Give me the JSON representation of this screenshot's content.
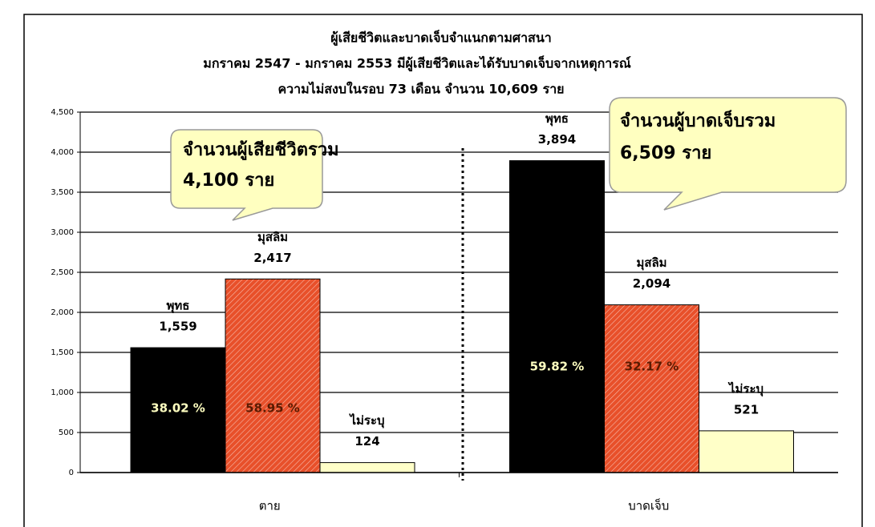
{
  "chart_data": {
    "type": "bar",
    "title": [
      "ผู้เสียชีวิตและบาดเจ็บจำแนกตามศาสนา",
      "มกราคม 2547 - มกราคม 2553 มีผู้เสียชีวิตและได้รับบาดเจ็บจากเหตุการณ์",
      "ความไม่สงบในรอบ 73 เดือน จำนวน 10,609 ราย"
    ],
    "categories": [
      "ตาย",
      "บาดเจ็บ"
    ],
    "series": [
      {
        "name": "พุทธ",
        "color": "#000000",
        "values": [
          1559,
          3894
        ],
        "value_labels": [
          "1,559",
          "3,894"
        ],
        "percent_labels": [
          "38.02 %",
          "59.82 %"
        ]
      },
      {
        "name": "มุสลิม",
        "color": "#e8502a",
        "hatch": true,
        "values": [
          2417,
          2094
        ],
        "value_labels": [
          "2,417",
          "2,094"
        ],
        "percent_labels": [
          "58.95 %",
          "32.17 %"
        ]
      },
      {
        "name": "ไม่ระบุ",
        "color": "#ffffc8",
        "values": [
          124,
          521
        ],
        "value_labels": [
          "124",
          "521"
        ]
      }
    ],
    "ylim": [
      0,
      4500
    ],
    "yticks": [
      0,
      500,
      {
        "value": 1000,
        "label": "1,000"
      },
      {
        "value": 1500,
        "label": "1,500"
      },
      {
        "value": 2000,
        "label": "2,000"
      },
      {
        "value": 2500,
        "label": "2,500"
      },
      {
        "value": 3000,
        "label": "3,000"
      },
      {
        "value": 3500,
        "label": "3,500"
      },
      {
        "value": 4000,
        "label": "4,000"
      },
      {
        "value": 4500,
        "label": "4,500"
      }
    ],
    "grid": true,
    "annotations": [
      [
        "จำนวนผู้เสียชีวิตรวม",
        "4,100 ราย"
      ],
      [
        "จำนวนผู้บาดเจ็บรวม",
        "6,509 ราย"
      ]
    ]
  }
}
